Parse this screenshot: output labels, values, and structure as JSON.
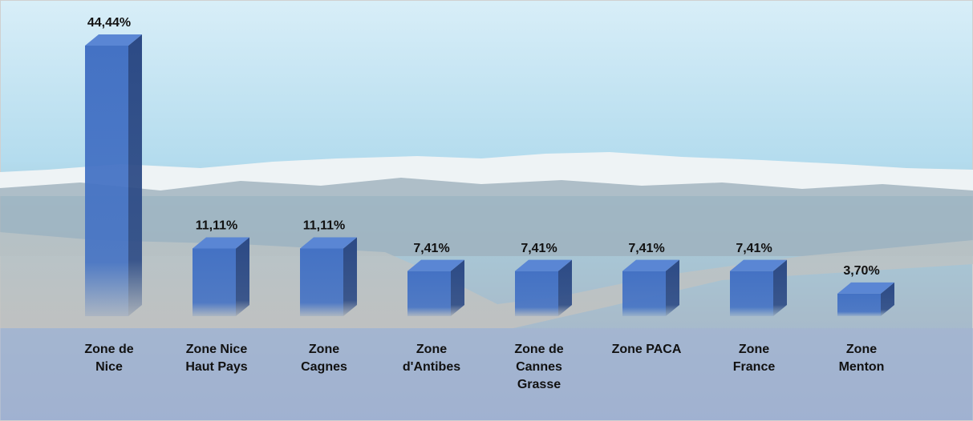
{
  "chart_data": {
    "type": "bar3d",
    "categories": [
      [
        "Zone de",
        "Nice"
      ],
      [
        "Zone Nice",
        "Haut Pays"
      ],
      [
        "Zone",
        "Cagnes"
      ],
      [
        "Zone",
        "d'Antibes"
      ],
      [
        "Zone de",
        "Cannes",
        "Grasse"
      ],
      [
        "Zone PACA"
      ],
      [
        "Zone",
        "France"
      ],
      [
        "Zone",
        "Menton"
      ]
    ],
    "values": [
      44.44,
      11.11,
      11.11,
      7.41,
      7.41,
      7.41,
      7.41,
      3.7
    ],
    "value_labels": [
      "44,44%",
      "11,11%",
      "11,11%",
      "7,41%",
      "7,41%",
      "7,41%",
      "7,41%",
      "3,70%"
    ],
    "color": "#4472c4"
  }
}
